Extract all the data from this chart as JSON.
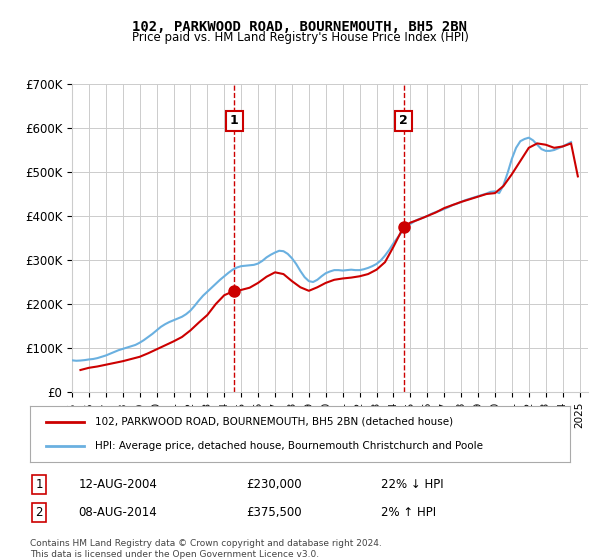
{
  "title": "102, PARKWOOD ROAD, BOURNEMOUTH, BH5 2BN",
  "subtitle": "Price paid vs. HM Land Registry's House Price Index (HPI)",
  "xlabel": "",
  "ylabel": "",
  "ylim": [
    0,
    700000
  ],
  "yticks": [
    0,
    100000,
    200000,
    300000,
    400000,
    500000,
    600000,
    700000
  ],
  "ytick_labels": [
    "£0",
    "£100K",
    "£200K",
    "£300K",
    "£400K",
    "£500K",
    "£600K",
    "£700K"
  ],
  "xlim_start": 1995.0,
  "xlim_end": 2025.5,
  "hpi_color": "#6ab0e0",
  "price_color": "#cc0000",
  "marker_color": "#cc0000",
  "vline_color": "#cc0000",
  "background_color": "#ffffff",
  "grid_color": "#cccccc",
  "legend_entry1": "102, PARKWOOD ROAD, BOURNEMOUTH, BH5 2BN (detached house)",
  "legend_entry2": "HPI: Average price, detached house, Bournemouth Christchurch and Poole",
  "transaction1_date": "12-AUG-2004",
  "transaction1_price": "£230,000",
  "transaction1_hpi": "22% ↓ HPI",
  "transaction1_year": 2004.6,
  "transaction1_value": 230000,
  "transaction2_date": "08-AUG-2014",
  "transaction2_price": "£375,500",
  "transaction2_hpi": "2% ↑ HPI",
  "transaction2_year": 2014.6,
  "transaction2_value": 375500,
  "footer1": "Contains HM Land Registry data © Crown copyright and database right 2024.",
  "footer2": "This data is licensed under the Open Government Licence v3.0.",
  "hpi_x": [
    1995.0,
    1995.25,
    1995.5,
    1995.75,
    1996.0,
    1996.25,
    1996.5,
    1996.75,
    1997.0,
    1997.25,
    1997.5,
    1997.75,
    1998.0,
    1998.25,
    1998.5,
    1998.75,
    1999.0,
    1999.25,
    1999.5,
    1999.75,
    2000.0,
    2000.25,
    2000.5,
    2000.75,
    2001.0,
    2001.25,
    2001.5,
    2001.75,
    2002.0,
    2002.25,
    2002.5,
    2002.75,
    2003.0,
    2003.25,
    2003.5,
    2003.75,
    2004.0,
    2004.25,
    2004.5,
    2004.75,
    2005.0,
    2005.25,
    2005.5,
    2005.75,
    2006.0,
    2006.25,
    2006.5,
    2006.75,
    2007.0,
    2007.25,
    2007.5,
    2007.75,
    2008.0,
    2008.25,
    2008.5,
    2008.75,
    2009.0,
    2009.25,
    2009.5,
    2009.75,
    2010.0,
    2010.25,
    2010.5,
    2010.75,
    2011.0,
    2011.25,
    2011.5,
    2011.75,
    2012.0,
    2012.25,
    2012.5,
    2012.75,
    2013.0,
    2013.25,
    2013.5,
    2013.75,
    2014.0,
    2014.25,
    2014.5,
    2014.75,
    2015.0,
    2015.25,
    2015.5,
    2015.75,
    2016.0,
    2016.25,
    2016.5,
    2016.75,
    2017.0,
    2017.25,
    2017.5,
    2017.75,
    2018.0,
    2018.25,
    2018.5,
    2018.75,
    2019.0,
    2019.25,
    2019.5,
    2019.75,
    2020.0,
    2020.25,
    2020.5,
    2020.75,
    2021.0,
    2021.25,
    2021.5,
    2021.75,
    2022.0,
    2022.25,
    2022.5,
    2022.75,
    2023.0,
    2023.25,
    2023.5,
    2023.75,
    2024.0,
    2024.25,
    2024.5
  ],
  "hpi_y": [
    72000,
    71000,
    71500,
    72500,
    74000,
    75000,
    77000,
    80000,
    83000,
    87000,
    91000,
    95000,
    98000,
    101000,
    104000,
    107000,
    112000,
    118000,
    125000,
    132000,
    140000,
    148000,
    154000,
    159000,
    163000,
    167000,
    171000,
    177000,
    185000,
    196000,
    208000,
    219000,
    228000,
    237000,
    246000,
    255000,
    263000,
    271000,
    278000,
    283000,
    286000,
    287000,
    288000,
    289000,
    292000,
    298000,
    306000,
    312000,
    317000,
    321000,
    320000,
    314000,
    304000,
    291000,
    275000,
    261000,
    252000,
    250000,
    255000,
    263000,
    270000,
    274000,
    277000,
    277000,
    276000,
    277000,
    278000,
    277000,
    277000,
    279000,
    282000,
    286000,
    291000,
    299000,
    310000,
    323000,
    338000,
    351000,
    364000,
    374000,
    382000,
    388000,
    393000,
    396000,
    400000,
    405000,
    409000,
    412000,
    416000,
    420000,
    425000,
    428000,
    432000,
    436000,
    439000,
    442000,
    445000,
    448000,
    451000,
    455000,
    456000,
    452000,
    470000,
    498000,
    530000,
    555000,
    570000,
    575000,
    578000,
    572000,
    562000,
    552000,
    548000,
    548000,
    550000,
    554000,
    558000,
    563000,
    568000
  ],
  "price_x": [
    1995.5,
    1996.0,
    1996.5,
    1997.0,
    1997.5,
    1998.0,
    1998.5,
    1999.0,
    1999.5,
    2000.0,
    2000.5,
    2001.0,
    2001.5,
    2002.0,
    2002.5,
    2003.0,
    2003.5,
    2004.0,
    2004.6,
    2005.0,
    2005.5,
    2006.0,
    2006.5,
    2007.0,
    2007.5,
    2008.0,
    2008.5,
    2009.0,
    2009.5,
    2010.0,
    2010.5,
    2011.0,
    2011.5,
    2012.0,
    2012.5,
    2013.0,
    2013.5,
    2014.0,
    2014.6,
    2015.0,
    2015.5,
    2016.0,
    2016.5,
    2017.0,
    2017.5,
    2018.0,
    2018.5,
    2019.0,
    2019.5,
    2020.0,
    2020.5,
    2021.0,
    2021.5,
    2022.0,
    2022.5,
    2023.0,
    2023.5,
    2024.0,
    2024.5,
    2024.9
  ],
  "price_y": [
    50000,
    55000,
    58000,
    62000,
    66000,
    70000,
    75000,
    80000,
    88000,
    97000,
    106000,
    115000,
    125000,
    140000,
    158000,
    175000,
    200000,
    220000,
    230000,
    232000,
    237000,
    248000,
    262000,
    272000,
    268000,
    252000,
    238000,
    230000,
    238000,
    248000,
    255000,
    258000,
    260000,
    263000,
    268000,
    278000,
    295000,
    330000,
    375500,
    385000,
    392000,
    400000,
    408000,
    418000,
    425000,
    432000,
    438000,
    444000,
    450000,
    452000,
    468000,
    495000,
    525000,
    555000,
    565000,
    562000,
    555000,
    558000,
    565000,
    490000
  ]
}
